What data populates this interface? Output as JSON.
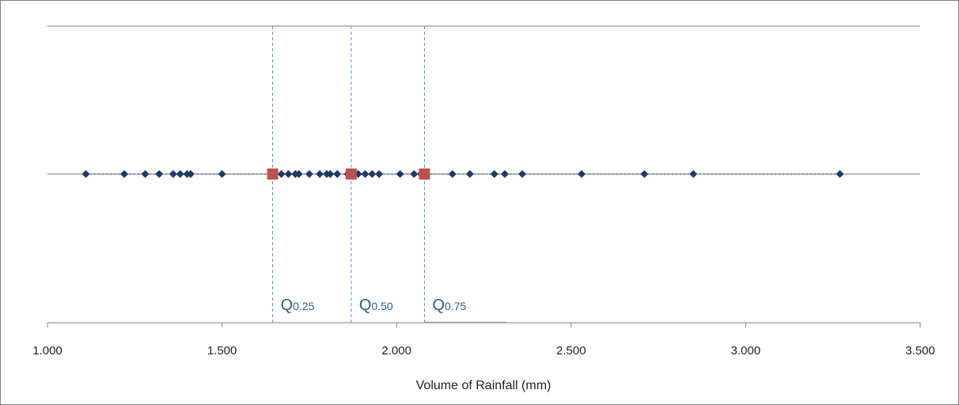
{
  "chart_data": {
    "type": "scatter",
    "xlabel": "Volume of Rainfall (mm)",
    "xlim": [
      1.0,
      3.5
    ],
    "x_ticks": [
      1.0,
      1.5,
      2.0,
      2.5,
      3.0,
      3.5
    ],
    "x_tick_labels": [
      "1.000",
      "1.500",
      "2.000",
      "2.500",
      "3.000",
      "3.500"
    ],
    "grid": "horizontal lines only",
    "series": [
      {
        "values": [
          1.11,
          1.22,
          1.28,
          1.32,
          1.36,
          1.38,
          1.4,
          1.41,
          1.5,
          1.64,
          1.67,
          1.69,
          1.71,
          1.72,
          1.75,
          1.78,
          1.8,
          1.81,
          1.83,
          1.86,
          1.87,
          1.89,
          1.91,
          1.93,
          1.95,
          2.01,
          2.05,
          2.07,
          2.08,
          2.16,
          2.21,
          2.28,
          2.31,
          2.36,
          2.53,
          2.71,
          2.85,
          3.27
        ],
        "color": "#1f3a68",
        "marker": "diamond"
      },
      {
        "values": [
          1.645,
          1.87,
          2.08
        ],
        "color": "#c0504d",
        "marker": "square"
      }
    ],
    "quantiles": [
      {
        "x": 1.645,
        "label": "Q",
        "sub": "0.25"
      },
      {
        "x": 1.87,
        "label": "Q",
        "sub": "0.50"
      },
      {
        "x": 2.08,
        "label": "Q",
        "sub": "0.75"
      }
    ],
    "line_color": "#5b8fd1"
  }
}
